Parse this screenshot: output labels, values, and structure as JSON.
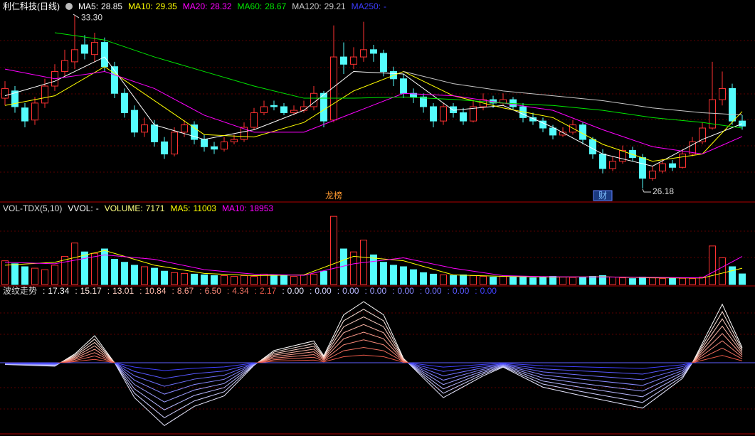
{
  "chart_data": [
    {
      "type": "candlestick",
      "title": "利仁科技(日线)",
      "legend_sep": ":",
      "ylim": [
        25.68,
        33.42
      ],
      "up_color": "#ff3232",
      "down_color": "#54fcfc",
      "max_label": "33.30",
      "min_label": "26.18",
      "markers": [
        "龙榜",
        "财"
      ],
      "candles": [
        [
          29.9,
          30.6,
          29.6,
          30.3
        ],
        [
          30.2,
          30.4,
          29.3,
          29.55
        ],
        [
          29.5,
          29.7,
          28.7,
          28.96
        ],
        [
          29.0,
          29.95,
          28.8,
          29.7
        ],
        [
          29.7,
          30.7,
          29.5,
          30.4
        ],
        [
          30.4,
          31.3,
          30.2,
          31.0
        ],
        [
          31.0,
          31.9,
          30.8,
          31.45
        ],
        [
          31.4,
          33.3,
          31.1,
          31.9
        ],
        [
          32.1,
          32.5,
          31.5,
          31.75
        ],
        [
          31.7,
          32.6,
          31.4,
          32.2
        ],
        [
          32.2,
          32.4,
          31.0,
          31.2
        ],
        [
          31.2,
          31.4,
          29.9,
          30.1
        ],
        [
          30.1,
          30.3,
          29.1,
          29.3
        ],
        [
          29.4,
          29.6,
          28.3,
          28.5
        ],
        [
          28.5,
          29.1,
          28.3,
          28.8
        ],
        [
          28.8,
          29.0,
          27.9,
          28.1
        ],
        [
          28.1,
          28.3,
          27.4,
          27.6
        ],
        [
          27.6,
          28.7,
          27.5,
          28.5
        ],
        [
          28.5,
          29.0,
          28.3,
          28.8
        ],
        [
          28.8,
          28.95,
          28.0,
          28.2
        ],
        [
          28.2,
          28.4,
          27.7,
          27.9
        ],
        [
          27.9,
          28.1,
          27.6,
          27.8
        ],
        [
          27.8,
          28.3,
          27.7,
          28.1
        ],
        [
          28.1,
          28.4,
          28.0,
          28.2
        ],
        [
          28.2,
          28.9,
          28.1,
          28.7
        ],
        [
          28.7,
          29.5,
          28.6,
          29.3
        ],
        [
          29.3,
          29.8,
          29.2,
          29.55
        ],
        [
          29.6,
          29.8,
          29.4,
          29.55
        ],
        [
          29.55,
          29.7,
          29.2,
          29.3
        ],
        [
          29.3,
          29.6,
          29.2,
          29.4
        ],
        [
          29.4,
          29.8,
          29.3,
          29.55
        ],
        [
          29.55,
          30.4,
          29.4,
          30.1
        ],
        [
          30.1,
          30.2,
          28.7,
          28.96
        ],
        [
          29.0,
          32.9,
          28.9,
          31.6
        ],
        [
          31.6,
          32.2,
          30.9,
          31.3
        ],
        [
          31.3,
          32.0,
          31.1,
          31.6
        ],
        [
          31.6,
          33.05,
          31.4,
          31.9
        ],
        [
          31.9,
          32.1,
          31.4,
          31.75
        ],
        [
          31.75,
          31.9,
          30.8,
          31.0
        ],
        [
          31.0,
          31.2,
          30.4,
          30.7
        ],
        [
          30.7,
          30.9,
          29.9,
          30.1
        ],
        [
          30.1,
          30.3,
          29.7,
          29.95
        ],
        [
          29.95,
          30.1,
          29.3,
          29.55
        ],
        [
          29.55,
          29.7,
          28.7,
          28.96
        ],
        [
          28.96,
          29.7,
          28.8,
          29.55
        ],
        [
          29.55,
          29.7,
          29.1,
          29.3
        ],
        [
          29.3,
          29.5,
          28.8,
          28.96
        ],
        [
          28.96,
          29.8,
          28.9,
          29.55
        ],
        [
          29.55,
          30.1,
          29.4,
          29.84
        ],
        [
          29.84,
          30.0,
          29.5,
          29.7
        ],
        [
          29.7,
          30.1,
          29.6,
          29.84
        ],
        [
          29.84,
          29.95,
          29.4,
          29.55
        ],
        [
          29.55,
          29.7,
          28.9,
          29.1
        ],
        [
          29.1,
          29.3,
          28.8,
          28.96
        ],
        [
          28.96,
          29.1,
          28.5,
          28.67
        ],
        [
          28.67,
          28.8,
          28.2,
          28.38
        ],
        [
          28.38,
          28.7,
          28.3,
          28.5
        ],
        [
          28.5,
          29.0,
          28.4,
          28.8
        ],
        [
          28.8,
          28.9,
          28.0,
          28.2
        ],
        [
          28.2,
          28.3,
          27.4,
          27.6
        ],
        [
          27.6,
          27.8,
          26.8,
          27.0
        ],
        [
          27.0,
          27.5,
          26.9,
          27.3
        ],
        [
          27.3,
          27.95,
          27.2,
          27.75
        ],
        [
          27.75,
          27.9,
          27.3,
          27.45
        ],
        [
          27.45,
          27.6,
          26.18,
          26.6
        ],
        [
          26.6,
          27.1,
          26.5,
          26.9
        ],
        [
          26.9,
          27.4,
          26.8,
          27.2
        ],
        [
          27.2,
          27.35,
          26.9,
          27.05
        ],
        [
          27.05,
          27.8,
          27.0,
          27.6
        ],
        [
          27.6,
          28.3,
          27.5,
          28.1
        ],
        [
          28.1,
          28.9,
          28.0,
          28.67
        ],
        [
          28.67,
          31.4,
          28.6,
          29.84
        ],
        [
          29.84,
          31.0,
          29.6,
          30.3
        ],
        [
          30.3,
          30.5,
          28.8,
          28.96
        ],
        [
          28.96,
          29.2,
          28.6,
          28.75
        ]
      ],
      "series": [
        {
          "name": "MA5",
          "color": "#ffffff",
          "x": [
            0,
            5,
            10,
            15,
            20,
            25,
            30,
            35,
            40,
            45,
            50,
            55,
            60,
            65,
            70,
            74
          ],
          "values": [
            30.0,
            30.6,
            31.6,
            28.8,
            28.2,
            28.6,
            29.4,
            31.0,
            30.9,
            29.4,
            29.6,
            28.7,
            27.6,
            27.1,
            28.2,
            28.85
          ]
        },
        {
          "name": "MA10",
          "color": "#ffff00",
          "x": [
            0,
            5,
            10,
            15,
            20,
            25,
            30,
            35,
            40,
            45,
            50,
            55,
            60,
            65,
            70,
            74
          ],
          "values": [
            29.6,
            30.0,
            31.2,
            29.8,
            28.4,
            28.3,
            28.9,
            30.2,
            31.0,
            30.0,
            29.5,
            29.1,
            28.0,
            27.3,
            27.6,
            29.35
          ]
        },
        {
          "name": "MA20",
          "color": "#ff00ff",
          "x": [
            0,
            5,
            10,
            15,
            20,
            25,
            30,
            35,
            40,
            45,
            50,
            55,
            60,
            65,
            70,
            74
          ],
          "values": [
            31.1,
            30.7,
            31.0,
            30.3,
            29.2,
            28.5,
            28.5,
            29.3,
            30.1,
            30.0,
            29.7,
            29.4,
            28.6,
            27.9,
            27.6,
            28.32
          ]
        },
        {
          "name": "MA60",
          "color": "#00e600",
          "x": [
            5,
            10,
            15,
            20,
            25,
            30,
            35,
            40,
            45,
            50,
            55,
            60,
            65,
            70,
            74
          ],
          "values": [
            32.6,
            32.3,
            31.6,
            31.0,
            30.4,
            29.9,
            29.9,
            29.95,
            29.85,
            29.7,
            29.6,
            29.4,
            29.1,
            28.9,
            28.67
          ]
        },
        {
          "name": "MA120",
          "color": "#c8c8c8",
          "x": [
            40,
            45,
            50,
            55,
            60,
            65,
            70,
            74
          ],
          "values": [
            31.0,
            30.5,
            30.2,
            30.0,
            29.8,
            29.5,
            29.3,
            29.21
          ]
        },
        {
          "name": "MA250",
          "color": "#3c3cff",
          "value_label": "-"
        }
      ]
    },
    {
      "type": "volume",
      "title": "VOL-TDX(5,10)",
      "legend_sep": ":",
      "ylim": [
        0,
        48000
      ],
      "series": [
        {
          "name": "VVOL",
          "color": "#ffffff",
          "value_label": "-"
        },
        {
          "name": "VOLUME",
          "color": "#ffff80",
          "values": [
            16000,
            14000,
            12000,
            11000,
            10000,
            13000,
            19000,
            28000,
            22000,
            21000,
            24000,
            17000,
            15000,
            13000,
            12000,
            11000,
            9000,
            8000,
            7500,
            7000,
            6500,
            6000,
            6000,
            5500,
            6000,
            5500,
            7000,
            6500,
            6000,
            5500,
            6500,
            7000,
            9000,
            46000,
            24000,
            22000,
            30000,
            20000,
            15000,
            13000,
            12000,
            10000,
            8000,
            7000,
            6500,
            6000,
            6500,
            6000,
            5500,
            5000,
            5500,
            5000,
            4800,
            4500,
            5000,
            5500,
            5000,
            4800,
            5000,
            5500,
            6000,
            5000,
            4500,
            4000,
            5000,
            4500,
            4000,
            4500,
            4200,
            4000,
            5000,
            26000,
            18000,
            12000,
            7171
          ]
        },
        {
          "name": "MA5",
          "color": "#ffff00",
          "x": [
            0,
            5,
            10,
            15,
            20,
            25,
            30,
            35,
            40,
            45,
            50,
            55,
            60,
            65,
            70,
            74
          ],
          "values": [
            13000,
            15000,
            23000,
            13000,
            7500,
            6000,
            6500,
            19000,
            16000,
            6500,
            5500,
            5000,
            5200,
            4500,
            4400,
            11003
          ]
        },
        {
          "name": "MA10",
          "color": "#ff00ff",
          "x": [
            0,
            5,
            10,
            15,
            20,
            25,
            30,
            35,
            40,
            45,
            50,
            55,
            60,
            65,
            70,
            74
          ],
          "values": [
            15000,
            14000,
            20000,
            17000,
            10000,
            7000,
            6200,
            14000,
            18000,
            11000,
            6000,
            5200,
            5100,
            4800,
            4500,
            18953
          ]
        }
      ]
    },
    {
      "type": "wave",
      "title": "波纹走势",
      "legend_sep": ":",
      "ylim": [
        -75,
        75
      ],
      "pos_colors": [
        "#ffffff",
        "#ffe8e0",
        "#ffd0c4",
        "#ffb8a8",
        "#ffa090",
        "#f88878",
        "#f07060",
        "#e85848"
      ],
      "neg_colors": [
        "#e8e8ff",
        "#d0d0ff",
        "#b8b8ff",
        "#a0a0ff",
        "#8888ff",
        "#7070ff",
        "#5858ff",
        "#4040ff"
      ],
      "readouts": [
        17.34,
        15.17,
        13.01,
        10.84,
        8.67,
        {
          "value": 6.5,
          "label": "6.50"
        },
        4.34,
        2.17,
        {
          "value": 0,
          "label": "0.00"
        },
        {
          "value": 0,
          "label": "0.00"
        },
        {
          "value": 0,
          "label": "0.00"
        },
        {
          "value": 0,
          "label": "0.00"
        },
        {
          "value": 0,
          "label": "0.00"
        },
        {
          "value": 0,
          "label": "0.00"
        },
        {
          "value": 0,
          "label": "0.00"
        },
        {
          "value": 0,
          "label": "0.00"
        }
      ],
      "x": [
        0,
        5,
        7,
        9,
        11,
        13,
        16,
        19,
        22,
        25,
        27,
        31,
        32,
        34,
        36,
        38,
        40,
        44,
        48,
        50,
        54,
        58,
        64,
        68,
        69,
        72,
        74
      ],
      "lines": [
        [
          -2,
          -4,
          10,
          31,
          0,
          -40,
          -72,
          -50,
          -38,
          -3,
          14,
          25,
          8,
          55,
          70,
          55,
          5,
          -40,
          -15,
          -5,
          -28,
          -38,
          -52,
          -18,
          0,
          67,
          17.34
        ],
        [
          -1.8,
          -3.5,
          8.8,
          27.1,
          0,
          -35,
          -63,
          -43.8,
          -33.3,
          -2.6,
          12.3,
          21.9,
          7,
          48.1,
          61.3,
          48.1,
          4.4,
          -35,
          -13.1,
          -4.4,
          -24.5,
          -33.3,
          -45.5,
          -15.8,
          0,
          58.6,
          15.17
        ],
        [
          -1.5,
          -3,
          7.5,
          23.3,
          0,
          -30,
          -54,
          -37.5,
          -28.5,
          -2.3,
          10.5,
          18.8,
          6,
          41.3,
          52.5,
          41.3,
          3.8,
          -30,
          -11.3,
          -3.8,
          -21,
          -28.5,
          -39,
          -13.5,
          0,
          50.3,
          13.01
        ],
        [
          -1.3,
          -2.5,
          6.3,
          19.4,
          0,
          -25,
          -45,
          -31.3,
          -23.8,
          -1.9,
          8.8,
          15.6,
          5,
          34.4,
          43.8,
          34.4,
          3.1,
          -25,
          -9.4,
          -3.1,
          -17.5,
          -23.8,
          -32.5,
          -11.3,
          0,
          41.9,
          10.84
        ],
        [
          -1,
          -2,
          5,
          15.5,
          0,
          -20,
          -36,
          -25,
          -19,
          -1.5,
          7,
          12.5,
          4,
          27.5,
          35,
          27.5,
          2.5,
          -20,
          -7.5,
          -2.5,
          -14,
          -19,
          -26,
          -9,
          0,
          33.5,
          8.67
        ],
        [
          -0.8,
          -1.5,
          3.8,
          11.6,
          0,
          -15,
          -27,
          -18.8,
          -14.3,
          -1.1,
          5.3,
          9.4,
          3,
          20.6,
          26.3,
          20.6,
          1.9,
          -15,
          -5.6,
          -1.9,
          -10.5,
          -14.3,
          -19.5,
          -6.8,
          0,
          25.1,
          6.5
        ],
        [
          -0.5,
          -1,
          2.5,
          7.8,
          0,
          -10,
          -18,
          -12.5,
          -9.5,
          -0.8,
          3.5,
          6.3,
          2,
          13.8,
          17.5,
          13.8,
          1.3,
          -10,
          -3.8,
          -1.3,
          -7,
          -9.5,
          -13,
          -4.5,
          0,
          16.8,
          4.34
        ],
        [
          -0.3,
          -0.5,
          1.3,
          3.9,
          0,
          -5,
          -9,
          -6.3,
          -4.8,
          -0.4,
          1.8,
          3.1,
          1,
          6.9,
          8.8,
          6.9,
          0.6,
          -5,
          -1.9,
          -0.6,
          -3.5,
          -4.8,
          -6.5,
          -2.3,
          0,
          8.4,
          2.17
        ]
      ]
    }
  ]
}
